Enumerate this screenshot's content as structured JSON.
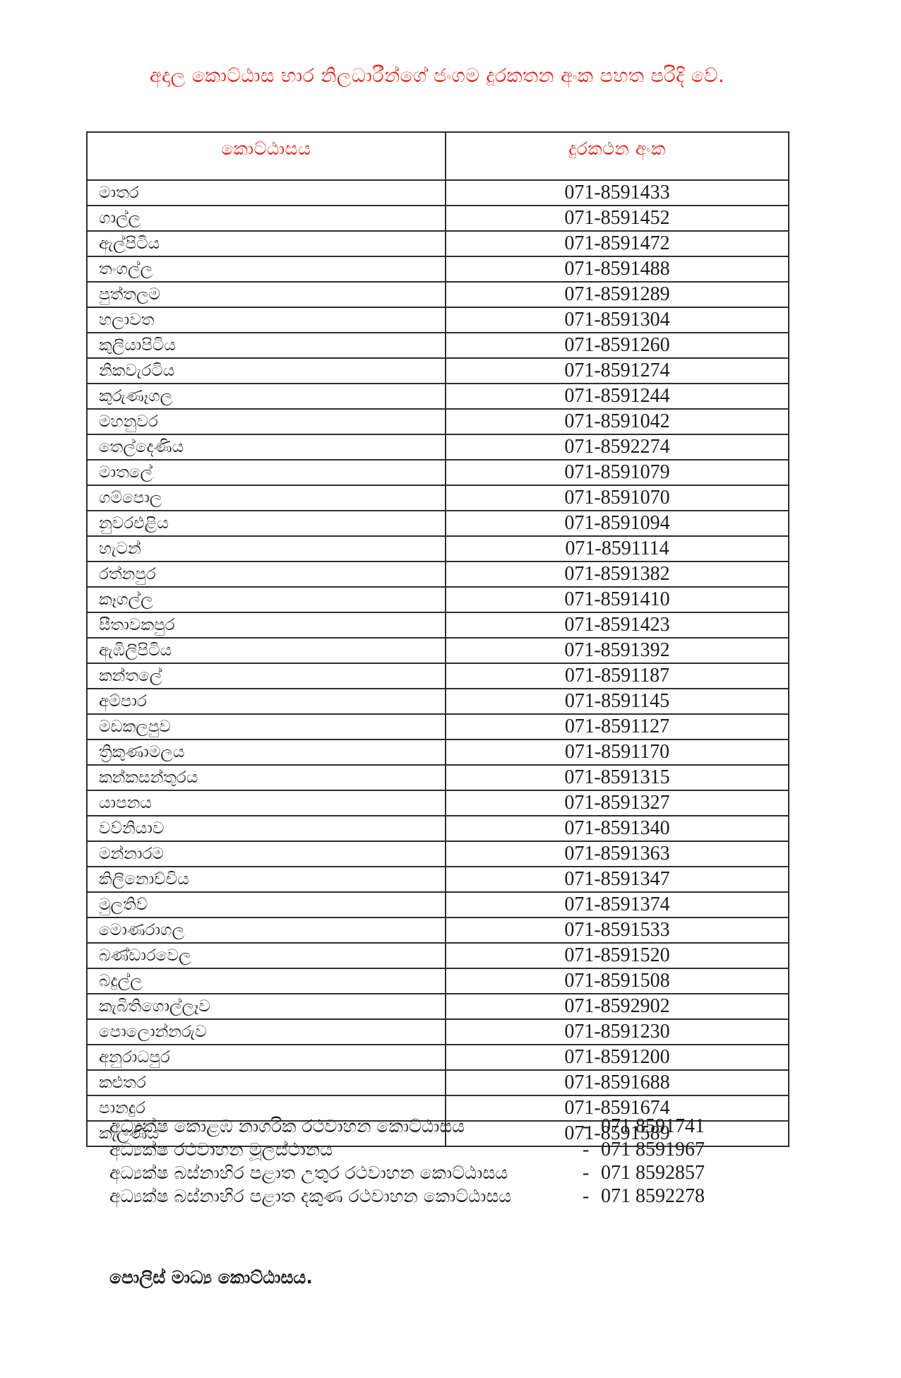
{
  "page": {
    "title": "අදාල කොට්ඨාස භාර නිලධාරීන්ගේ ජංගම දුරකතන අංක පහත පරිදි වේ.",
    "signature": "පොලිස් මාධ්‍ය කොට්ඨාසය."
  },
  "colors": {
    "accent_red": "#e02318",
    "text_black": "#1c1c1c",
    "table_border": "#2e2e2e",
    "background": "#ffffff"
  },
  "table": {
    "headers": [
      {
        "label": "කොට්ඨාසය"
      },
      {
        "label": "දුරකථන අංක"
      }
    ],
    "rows": [
      {
        "division": "මාතර",
        "phone": "071-8591433"
      },
      {
        "division": "ගාල්ල",
        "phone": "071-8591452"
      },
      {
        "division": "ඇල්පිටිය",
        "phone": "071-8591472"
      },
      {
        "division": "තංගල්ල",
        "phone": "071-8591488"
      },
      {
        "division": "පුත්තලම",
        "phone": "071-8591289"
      },
      {
        "division": "හලාවත",
        "phone": "071-8591304"
      },
      {
        "division": "කුලියාපිටිය",
        "phone": "071-8591260"
      },
      {
        "division": "නිකවැරටිය",
        "phone": "071-8591274"
      },
      {
        "division": "කුරුණෑගල",
        "phone": "071-8591244"
      },
      {
        "division": "මහනුවර",
        "phone": "071-8591042"
      },
      {
        "division": "තෙල්දෙණිය",
        "phone": "071-8592274"
      },
      {
        "division": "මාතලේ",
        "phone": "071-8591079"
      },
      {
        "division": "ගම්පොල",
        "phone": "071-8591070"
      },
      {
        "division": "නුවරඑළිය",
        "phone": "071-8591094"
      },
      {
        "division": "හැටන්",
        "phone": "071-8591114"
      },
      {
        "division": "රත්නපුර",
        "phone": "071-8591382"
      },
      {
        "division": "කෑගල්ල",
        "phone": "071-8591410"
      },
      {
        "division": "සීතාවකපුර",
        "phone": "071-8591423"
      },
      {
        "division": "ඇඹිලිපිටිය",
        "phone": "071-8591392"
      },
      {
        "division": "කන්තලේ",
        "phone": "071-8591187"
      },
      {
        "division": "අම්පාර",
        "phone": "071-8591145"
      },
      {
        "division": "මඩකලපුව",
        "phone": "071-8591127"
      },
      {
        "division": "ත්‍රිකුණාමලය",
        "phone": "071-8591170"
      },
      {
        "division": "කන්කසන්තුරය",
        "phone": "071-8591315"
      },
      {
        "division": "යාපනය",
        "phone": "071-8591327"
      },
      {
        "division": "වව්නියාව",
        "phone": "071-8591340"
      },
      {
        "division": "මන්නාරම",
        "phone": "071-8591363"
      },
      {
        "division": "කිලිනොච්චිය",
        "phone": "071-8591347"
      },
      {
        "division": "මුලතිව්",
        "phone": "071-8591374"
      },
      {
        "division": "මොණරාගල",
        "phone": "071-8591533"
      },
      {
        "division": "බණ්ඩාරවෙල",
        "phone": "071-8591520"
      },
      {
        "division": "බදුල්ල",
        "phone": "071-8591508"
      },
      {
        "division": "කැබිතිගොල්ලෑව",
        "phone": "071-8592902"
      },
      {
        "division": "පොලොන්නරුව",
        "phone": "071-8591230"
      },
      {
        "division": "අනුරාධපුර",
        "phone": "071-8591200"
      },
      {
        "division": "කළුතර",
        "phone": "071-8591688"
      },
      {
        "division": "පානදුර",
        "phone": "071-8591674"
      },
      {
        "division": "කැලණිය",
        "phone": "071-8591589"
      }
    ]
  },
  "directors": {
    "separator": "-",
    "items": [
      {
        "label": "අධ්‍යක්ෂ කොළඹ නාගරික රථවාහන කොට්ඨාසය",
        "phone": "071 8591741"
      },
      {
        "label": "අධ්‍යක්ෂ රථවාහන මූලස්ථානය",
        "phone": "071 8591967"
      },
      {
        "label": "අධ්‍යක්ෂ බස්නාහිර පළාත උතුර රථවාහන කොට්ඨාසය",
        "phone": "071 8592857"
      },
      {
        "label": "අධ්‍යක්ෂ බස්නාහිර පළාත දකුණ රථවාහන කොට්ඨාසය",
        "phone": "071 8592278"
      }
    ]
  }
}
